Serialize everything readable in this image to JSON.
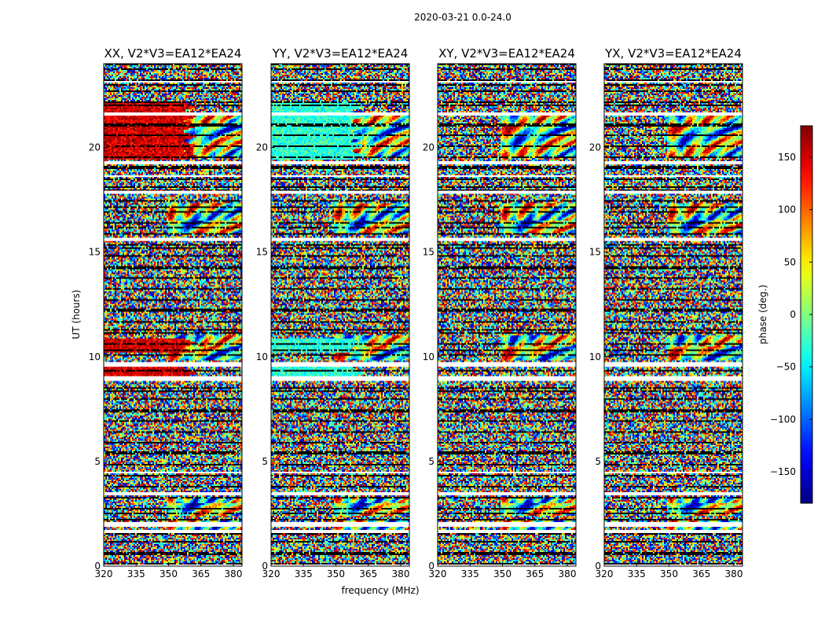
{
  "figure": {
    "title": "2020-03-21 0.0-24.0"
  },
  "chart_data": {
    "type": "heatmap",
    "suptitle": "2020-03-21 0.0-24.0",
    "xlabel": "frequency (MHz)",
    "ylabel": "UT (hours)",
    "xlim": [
      320,
      384
    ],
    "ylim": [
      0,
      24
    ],
    "xticks": [
      "320",
      "335",
      "350",
      "365",
      "380"
    ],
    "xtick_values": [
      320,
      335,
      350,
      365,
      380
    ],
    "yticks": [
      "0",
      "5",
      "10",
      "15",
      "20"
    ],
    "ytick_values": [
      0,
      5,
      10,
      15,
      20
    ],
    "panels": [
      {
        "title": "XX, V2*V3=EA12*EA24",
        "stable_phase": 150
      },
      {
        "title": "YY, V2*V3=EA12*EA24",
        "stable_phase": -30
      },
      {
        "title": "XY, V2*V3=EA12*EA24",
        "stable_phase": null
      },
      {
        "title": "YX, V2*V3=EA12*EA24",
        "stable_phase": null
      }
    ],
    "flagged_ut_hours": [
      [
        0.0,
        0.1
      ],
      [
        1.55,
        1.7
      ],
      [
        1.85,
        2.1
      ],
      [
        3.35,
        3.55
      ],
      [
        4.4,
        4.5
      ],
      [
        8.85,
        9.05
      ],
      [
        9.55,
        9.75
      ],
      [
        15.55,
        15.7
      ],
      [
        17.75,
        17.95
      ],
      [
        18.6,
        18.7
      ],
      [
        19.2,
        19.35
      ],
      [
        21.55,
        21.65
      ],
      [
        23.1,
        23.2
      ]
    ],
    "fringe_bands_ut_hours": [
      [
        1.5,
        2.2
      ],
      [
        2.4,
        3.3
      ],
      [
        9.8,
        11.0
      ],
      [
        15.9,
        17.3
      ],
      [
        19.5,
        21.5
      ]
    ],
    "colorbar": {
      "label": "phase (deg.)",
      "range": [
        -180,
        180
      ],
      "ticks": [
        "150",
        "100",
        "50",
        "0",
        "−50",
        "−100",
        "−150"
      ],
      "tick_values": [
        150,
        100,
        50,
        0,
        -50,
        -100,
        -150
      ],
      "colormap": "jet"
    }
  }
}
